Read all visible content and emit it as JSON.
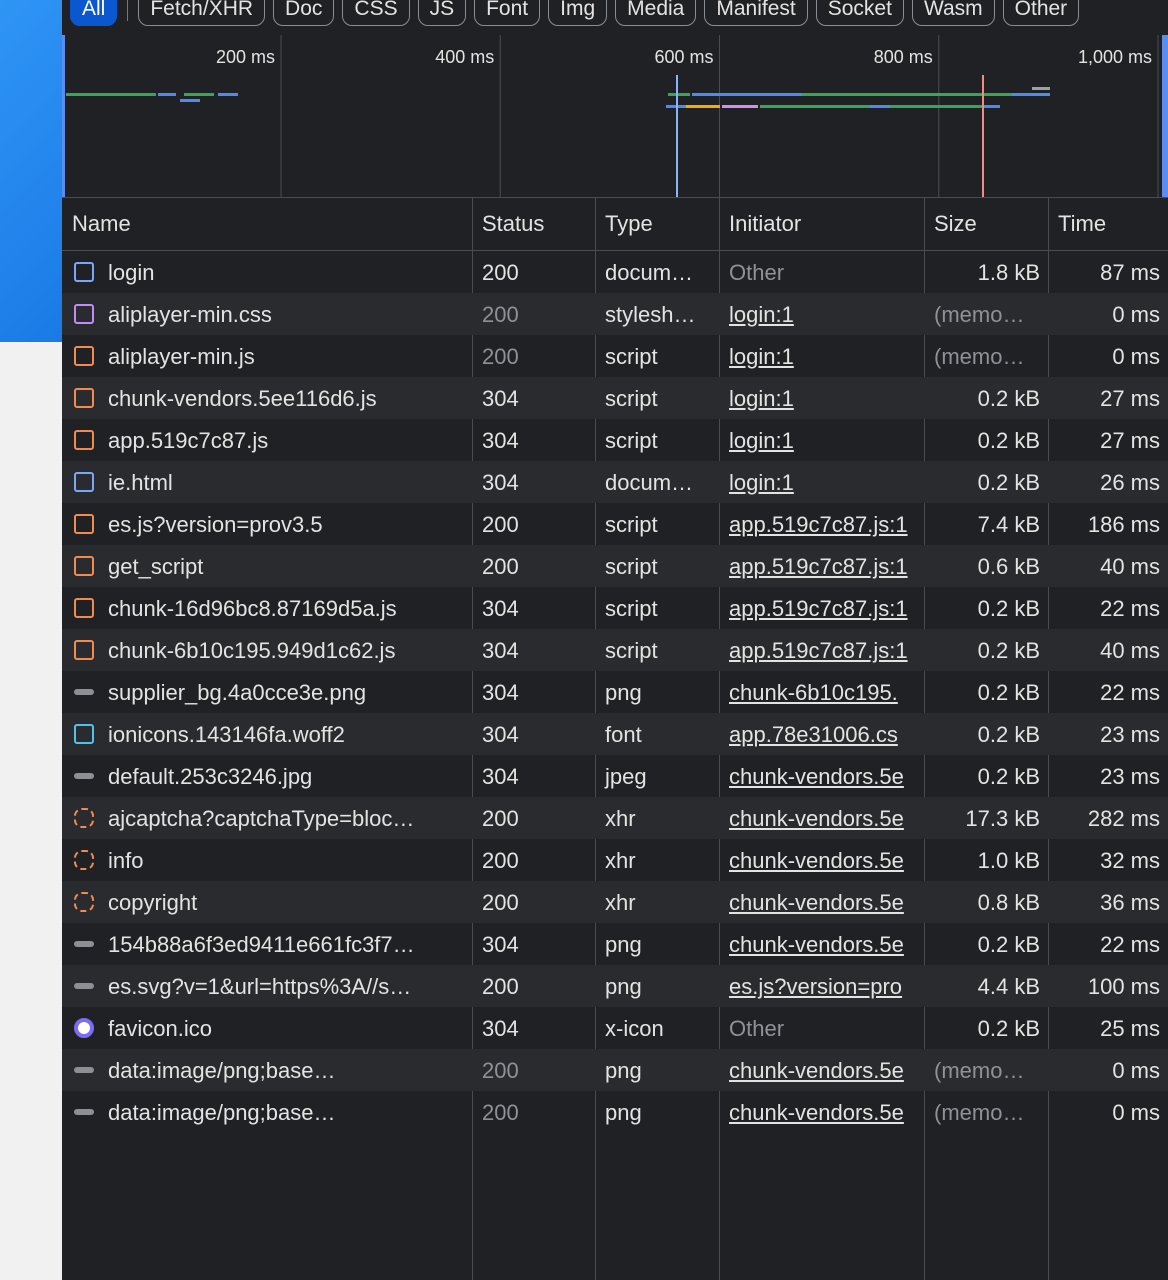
{
  "filters": [
    "All",
    "Fetch/XHR",
    "Doc",
    "CSS",
    "JS",
    "Font",
    "Img",
    "Media",
    "Manifest",
    "Socket",
    "Wasm",
    "Other"
  ],
  "timeline": {
    "ticks": [
      "200 ms",
      "400 ms",
      "600 ms",
      "800 ms",
      "1,000 ms"
    ]
  },
  "table": {
    "columns": [
      "Name",
      "Status",
      "Type",
      "Initiator",
      "Size",
      "Time"
    ],
    "rows": [
      [
        "login",
        "200",
        "docum…",
        "Other",
        "1.8 kB",
        "87 ms"
      ],
      [
        "aliplayer-min.css",
        "200",
        "stylesh…",
        "login:1",
        "(memo…",
        "0 ms"
      ],
      [
        "aliplayer-min.js",
        "200",
        "script",
        "login:1",
        "(memo…",
        "0 ms"
      ],
      [
        "chunk-vendors.5ee116d6.js",
        "304",
        "script",
        "login:1",
        "0.2 kB",
        "27 ms"
      ],
      [
        "app.519c7c87.js",
        "304",
        "script",
        "login:1",
        "0.2 kB",
        "27 ms"
      ],
      [
        "ie.html",
        "304",
        "docum…",
        "login:1",
        "0.2 kB",
        "26 ms"
      ],
      [
        "es.js?version=prov3.5",
        "200",
        "script",
        "app.519c7c87.js:1",
        "7.4 kB",
        "186 ms"
      ],
      [
        "get_script",
        "200",
        "script",
        "app.519c7c87.js:1",
        "0.6 kB",
        "40 ms"
      ],
      [
        "chunk-16d96bc8.87169d5a.js",
        "304",
        "script",
        "app.519c7c87.js:1",
        "0.2 kB",
        "22 ms"
      ],
      [
        "chunk-6b10c195.949d1c62.js",
        "304",
        "script",
        "app.519c7c87.js:1",
        "0.2 kB",
        "40 ms"
      ],
      [
        "supplier_bg.4a0cce3e.png",
        "304",
        "png",
        "chunk-6b10c195.",
        "0.2 kB",
        "22 ms"
      ],
      [
        "ionicons.143146fa.woff2",
        "304",
        "font",
        "app.78e31006.cs",
        "0.2 kB",
        "23 ms"
      ],
      [
        "default.253c3246.jpg",
        "304",
        "jpeg",
        "chunk-vendors.5e",
        "0.2 kB",
        "23 ms"
      ],
      [
        "ajcaptcha?captchaType=bloc…",
        "200",
        "xhr",
        "chunk-vendors.5e",
        "17.3 kB",
        "282 ms"
      ],
      [
        "info",
        "200",
        "xhr",
        "chunk-vendors.5e",
        "1.0 kB",
        "32 ms"
      ],
      [
        "copyright",
        "200",
        "xhr",
        "chunk-vendors.5e",
        "0.8 kB",
        "36 ms"
      ],
      [
        "154b88a6f3ed9411e661fc3f7…",
        "304",
        "png",
        "chunk-vendors.5e",
        "0.2 kB",
        "22 ms"
      ],
      [
        "es.svg?v=1&url=https%3A//s…",
        "200",
        "png",
        "es.js?version=pro",
        "4.4 kB",
        "100 ms"
      ],
      [
        "favicon.ico",
        "304",
        "x-icon",
        "Other",
        "0.2 kB",
        "25 ms"
      ],
      [
        "data:image/png;base…",
        "200",
        "png",
        "chunk-vendors.5e",
        "(memo…",
        "0 ms"
      ],
      [
        "data:image/png;base…",
        "200",
        "png",
        "chunk-vendors.5e",
        "(memo…",
        "0 ms"
      ]
    ]
  }
}
